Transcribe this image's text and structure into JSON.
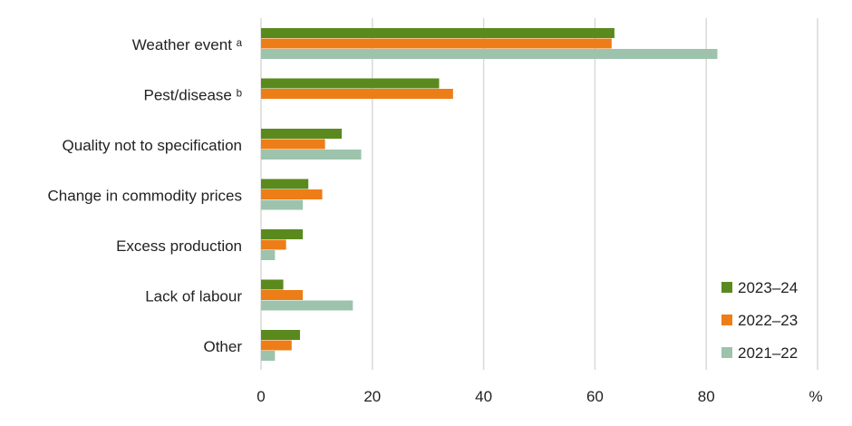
{
  "chart_data": {
    "type": "bar",
    "orientation": "horizontal",
    "categories": [
      "Weather event ᵃ",
      "Pest/disease ᵇ",
      "Quality not to specification",
      "Change in commodity prices",
      "Excess production",
      "Lack of labour",
      "Other"
    ],
    "series": [
      {
        "name": "2023–24",
        "color": "#5a8a1e",
        "values": [
          63.5,
          32,
          14.5,
          8.5,
          7.5,
          4,
          7
        ]
      },
      {
        "name": "2022–23",
        "color": "#ed7d17",
        "values": [
          63,
          34.5,
          11.5,
          11,
          4.5,
          7.5,
          5.5
        ]
      },
      {
        "name": "2021–22",
        "color": "#9dc3ad",
        "values": [
          82,
          null,
          18,
          7.5,
          2.5,
          16.5,
          2.5
        ]
      }
    ],
    "x_ticks": [
      "0",
      "20",
      "40",
      "60",
      "80"
    ],
    "x_unit_label": "%",
    "xlim": [
      0,
      100
    ],
    "grid": "vertical",
    "legend_position": "bottom-right"
  }
}
